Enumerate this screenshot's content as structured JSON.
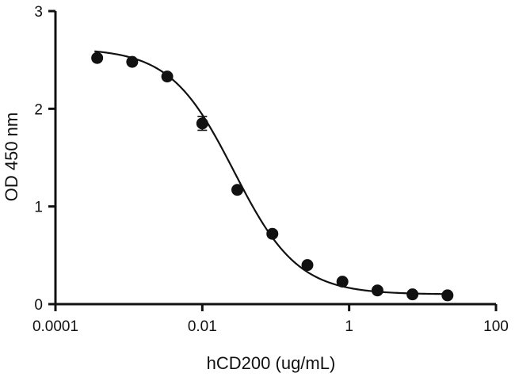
{
  "chart_data": {
    "type": "scatter",
    "title": "",
    "xlabel": "hCD200 (ug/mL)",
    "ylabel": "OD 450 nm",
    "x_scale": "log",
    "xlim": [
      0.0001,
      100
    ],
    "ylim": [
      0,
      3
    ],
    "x_ticks": [
      "0.0001",
      "0.01",
      "1",
      "100"
    ],
    "y_ticks": [
      "0",
      "1",
      "2",
      "3"
    ],
    "grid": false,
    "legend": "none",
    "series": [
      {
        "x": [
          0.00037,
          0.00111,
          0.00333,
          0.01,
          0.03,
          0.09,
          0.27,
          0.81,
          2.43,
          7.29,
          21.87
        ],
        "y": [
          2.52,
          2.48,
          2.33,
          1.85,
          1.17,
          0.72,
          0.4,
          0.23,
          0.14,
          0.1,
          0.09
        ],
        "error": [
          0.03,
          0.02,
          0.03,
          0.07,
          0.02,
          0.02,
          0.02,
          0.02,
          0.02,
          0.01,
          0.01
        ]
      }
    ],
    "fit": {
      "model": "four-parameter logistic",
      "top": 2.62,
      "bottom": 0.1,
      "ec50": 0.027,
      "hill": 1.0,
      "x_range": [
        0.00034,
        22
      ]
    },
    "colors": {
      "marks": "#111111",
      "background": "#ffffff"
    }
  }
}
